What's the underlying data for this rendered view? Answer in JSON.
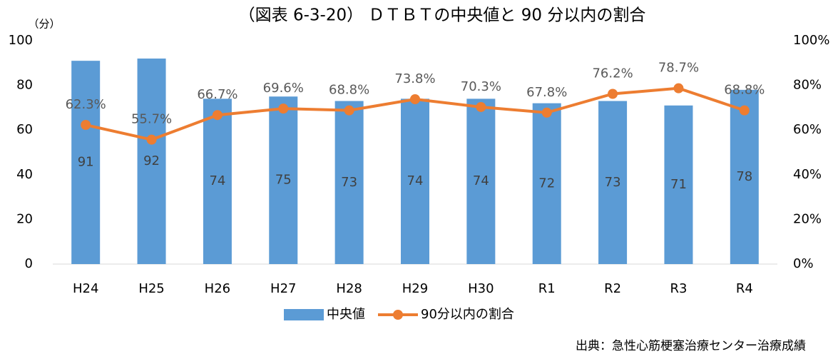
{
  "chart_data": {
    "type": "bar_line",
    "title": "（図表 6-3-20） ＤＴＢＴの中央値と 90 分以内の割合",
    "y_unit_label": "（分）",
    "source": "出典：急性心筋梗塞治療センター治療成績",
    "categories": [
      "H24",
      "H25",
      "H26",
      "H27",
      "H28",
      "H29",
      "H30",
      "R1",
      "R2",
      "R3",
      "R4"
    ],
    "series": [
      {
        "name": "中央値",
        "type": "bar",
        "color": "#5b9bd5",
        "axis": "y",
        "values": [
          91,
          92,
          74,
          75,
          73,
          74,
          74,
          72,
          73,
          71,
          78
        ]
      },
      {
        "name": "90分以内の割合",
        "type": "line",
        "color": "#ed7d31",
        "axis": "y2",
        "values": [
          62.3,
          55.7,
          66.7,
          69.6,
          68.8,
          73.8,
          70.3,
          67.8,
          76.2,
          78.7,
          68.8
        ],
        "value_labels": [
          "62.3%",
          "55.7%",
          "66.7%",
          "69.6%",
          "68.8%",
          "73.8%",
          "70.3%",
          "67.8%",
          "76.2%",
          "78.7%",
          "68.8%"
        ]
      }
    ],
    "ylim": [
      0,
      100
    ],
    "yticks": [
      0,
      20,
      40,
      60,
      80,
      100
    ],
    "y2lim": [
      0,
      100
    ],
    "y2ticks": [
      {
        "value": 0,
        "label": "0%"
      },
      {
        "value": 20,
        "label": "20%"
      },
      {
        "value": 40,
        "label": "40%"
      },
      {
        "value": 60,
        "label": "60%"
      },
      {
        "value": 80,
        "label": "80%"
      },
      {
        "value": 100,
        "label": "100%"
      }
    ],
    "grid": false,
    "legend": "bottom"
  }
}
